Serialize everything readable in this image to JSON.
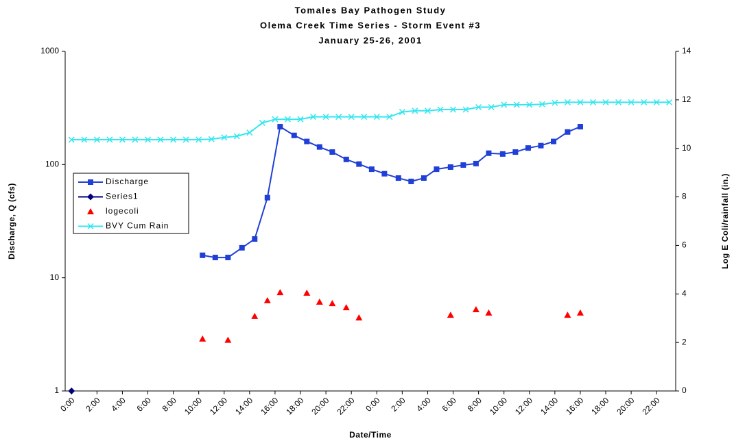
{
  "chart_data": {
    "type": "line",
    "title": "Tomales Bay Pathogen Study",
    "subtitle": "Olema Creek Time Series - Storm Event #3",
    "date_line": "January 25-26, 2001",
    "x_label": "Date/Time",
    "y_label": "Discharge, Q (cfs)",
    "y2_label": "Log E Coli/rainfall (in.)",
    "xlim": [
      -0.5,
      47.5
    ],
    "xticks": [
      {
        "value": 0,
        "label": "0:00"
      },
      {
        "value": 2,
        "label": "2:00"
      },
      {
        "value": 4,
        "label": "4:00"
      },
      {
        "value": 6,
        "label": "6:00"
      },
      {
        "value": 8,
        "label": "8:00"
      },
      {
        "value": 10,
        "label": "10:00"
      },
      {
        "value": 12,
        "label": "12:00"
      },
      {
        "value": 14,
        "label": "14:00"
      },
      {
        "value": 16,
        "label": "16:00"
      },
      {
        "value": 18,
        "label": "18:00"
      },
      {
        "value": 20,
        "label": "20:00"
      },
      {
        "value": 22,
        "label": "22:00"
      },
      {
        "value": 24,
        "label": "0:00"
      },
      {
        "value": 26,
        "label": "2:00"
      },
      {
        "value": 28,
        "label": "4:00"
      },
      {
        "value": 30,
        "label": "6:00"
      },
      {
        "value": 32,
        "label": "8:00"
      },
      {
        "value": 34,
        "label": "10:00"
      },
      {
        "value": 36,
        "label": "12:00"
      },
      {
        "value": 38,
        "label": "14:00"
      },
      {
        "value": 40,
        "label": "16:00"
      },
      {
        "value": 42,
        "label": "18:00"
      },
      {
        "value": 44,
        "label": "20:00"
      },
      {
        "value": 46,
        "label": "22:00"
      }
    ],
    "ylim": [
      1,
      1000
    ],
    "yticks": [
      1,
      10,
      100,
      1000
    ],
    "log_y": true,
    "y2lim": [
      0,
      14
    ],
    "y2ticks": [
      0,
      2,
      4,
      6,
      8,
      10,
      12,
      14
    ],
    "grid": false,
    "legend": "left",
    "series": [
      {
        "name": "Discharge",
        "color": "#1f3fd6",
        "marker": "square",
        "line": true,
        "axis": "y",
        "x": [
          10.3,
          11.3,
          12.3,
          13.4,
          14.4,
          15.4,
          16.4,
          17.5,
          18.5,
          19.5,
          20.5,
          21.6,
          22.6,
          23.6,
          24.6,
          25.7,
          26.7,
          27.7,
          28.7,
          29.8,
          30.8,
          31.8,
          32.8,
          33.9,
          34.9,
          35.9,
          36.9,
          37.9,
          39.0,
          40.0
        ],
        "values": [
          15.8,
          15.1,
          15.1,
          18.4,
          22,
          51,
          216,
          181,
          160,
          143,
          129,
          111,
          101,
          91,
          83,
          76,
          71,
          76,
          91,
          95,
          99,
          102,
          126,
          124,
          129,
          140,
          147,
          160,
          194,
          216
        ]
      },
      {
        "name": "Series1",
        "color": "#000080",
        "marker": "diamond",
        "line": true,
        "axis": "y",
        "x": [
          0
        ],
        "values": [
          1
        ]
      },
      {
        "name": "logecoli",
        "color": "#ff0000",
        "marker": "triangle",
        "line": false,
        "axis": "y2",
        "x": [
          10.3,
          12.3,
          14.4,
          15.4,
          16.4,
          18.5,
          19.5,
          20.5,
          21.6,
          22.6,
          29.8,
          31.8,
          32.8,
          39.0,
          40.0
        ],
        "values": [
          2.15,
          2.1,
          3.08,
          3.73,
          4.06,
          4.04,
          3.67,
          3.61,
          3.44,
          3.02,
          3.13,
          3.36,
          3.22,
          3.13,
          3.22
        ]
      },
      {
        "name": "BVY Cum Rain",
        "color": "#33e6f0",
        "marker": "cross",
        "line": true,
        "axis": "y2",
        "x": [
          0,
          1,
          2,
          3,
          4,
          5,
          6,
          7,
          8,
          9,
          10,
          11,
          12,
          13,
          14,
          15,
          16,
          17,
          18,
          19,
          20,
          21,
          22,
          23,
          24,
          25,
          26,
          27,
          28,
          29,
          30,
          31,
          32,
          33,
          34,
          35,
          36,
          37,
          38,
          39,
          40,
          41,
          42,
          43,
          44,
          45,
          46,
          47
        ],
        "values": [
          10.36,
          10.36,
          10.36,
          10.36,
          10.36,
          10.36,
          10.36,
          10.36,
          10.36,
          10.36,
          10.36,
          10.38,
          10.45,
          10.5,
          10.65,
          11.05,
          11.2,
          11.2,
          11.2,
          11.3,
          11.3,
          11.3,
          11.3,
          11.3,
          11.3,
          11.3,
          11.5,
          11.55,
          11.55,
          11.6,
          11.6,
          11.6,
          11.7,
          11.7,
          11.8,
          11.8,
          11.8,
          11.82,
          11.88,
          11.9,
          11.9,
          11.9,
          11.9,
          11.9,
          11.9,
          11.9,
          11.9,
          11.9
        ]
      }
    ]
  }
}
